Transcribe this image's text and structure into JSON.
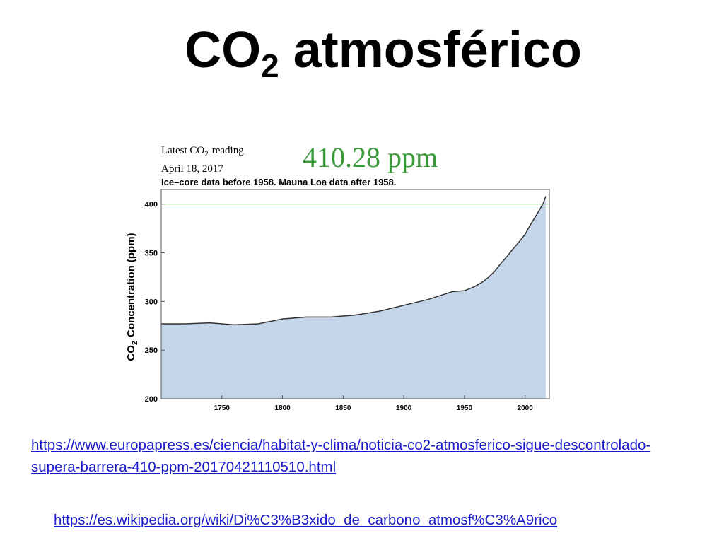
{
  "title": {
    "main": "CO",
    "sub": "2",
    "rest": "atmosférico"
  },
  "chart_data": {
    "type": "area",
    "reading_label": {
      "main": "Latest CO",
      "sub": "2",
      "rest": "reading"
    },
    "date": "April 18, 2017",
    "reading": "410.28 ppm",
    "note": "Ice–core data before 1958. Mauna Loa data after 1958.",
    "y_label": {
      "main": "CO",
      "sub": "2",
      "rest": "Concentration (ppm)"
    },
    "x": [
      1700,
      1720,
      1740,
      1760,
      1780,
      1800,
      1820,
      1840,
      1860,
      1880,
      1900,
      1910,
      1920,
      1930,
      1940,
      1950,
      1958,
      1965,
      1970,
      1975,
      1980,
      1985,
      1990,
      1995,
      2000,
      2005,
      2010,
      2015,
      2017
    ],
    "values": [
      277,
      277,
      278,
      276,
      277,
      282,
      284,
      284,
      286,
      290,
      296,
      299,
      302,
      306,
      310,
      311,
      315,
      320,
      325,
      331,
      339,
      346,
      354,
      361,
      369,
      380,
      390,
      401,
      408
    ],
    "color": "#333333",
    "fill": "#c5d5ea",
    "hline": 400,
    "hline_color": "#3a8a3a",
    "xlim": [
      1700,
      2020
    ],
    "ylim": [
      200,
      415
    ],
    "xticks": [
      1750,
      1800,
      1850,
      1900,
      1950,
      2000
    ],
    "yticks": [
      200,
      250,
      300,
      350,
      400
    ]
  },
  "links": [
    "https://www.europapress.es/ciencia/habitat-y-clima/noticia-co2-atmosferico-sigue-descontrolado-supera-barrera-410-ppm-20170421110510.html",
    "https://es.wikipedia.org/wiki/Di%C3%B3xido_de_carbono_atmosf%C3%A9rico"
  ]
}
